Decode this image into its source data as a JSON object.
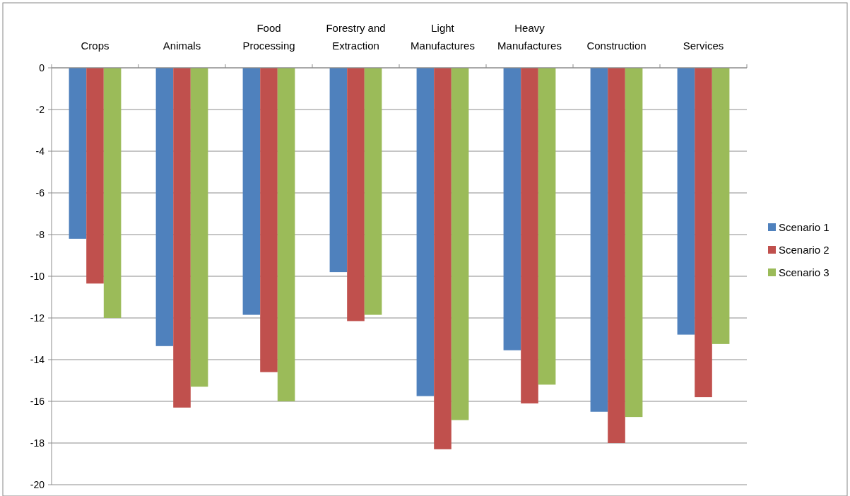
{
  "chart_data": {
    "type": "bar",
    "categories": [
      "Crops",
      "Animals",
      "Food Processing",
      "Forestry and Extraction",
      "Light Manufactures",
      "Heavy Manufactures",
      "Construction",
      "Services"
    ],
    "series": [
      {
        "name": "Scenario 1",
        "color": "#4f81bd",
        "values": [
          -8.2,
          -13.35,
          -11.85,
          -9.8,
          -15.75,
          -13.55,
          -16.5,
          -12.8
        ]
      },
      {
        "name": "Scenario 2",
        "color": "#c0504d",
        "values": [
          -10.35,
          -16.3,
          -14.6,
          -12.15,
          -18.3,
          -16.1,
          -18,
          -15.8
        ]
      },
      {
        "name": "Scenario 3",
        "color": "#9bbb59",
        "values": [
          -12,
          -15.3,
          -16,
          -11.85,
          -16.9,
          -15.2,
          -16.75,
          -13.25
        ]
      }
    ],
    "ylim": [
      -20,
      0
    ],
    "yticks": [
      -20,
      -18,
      -16,
      -14,
      -12,
      -10,
      -8,
      -6,
      -4,
      -2,
      0
    ],
    "grid": "y",
    "legend": "right"
  }
}
